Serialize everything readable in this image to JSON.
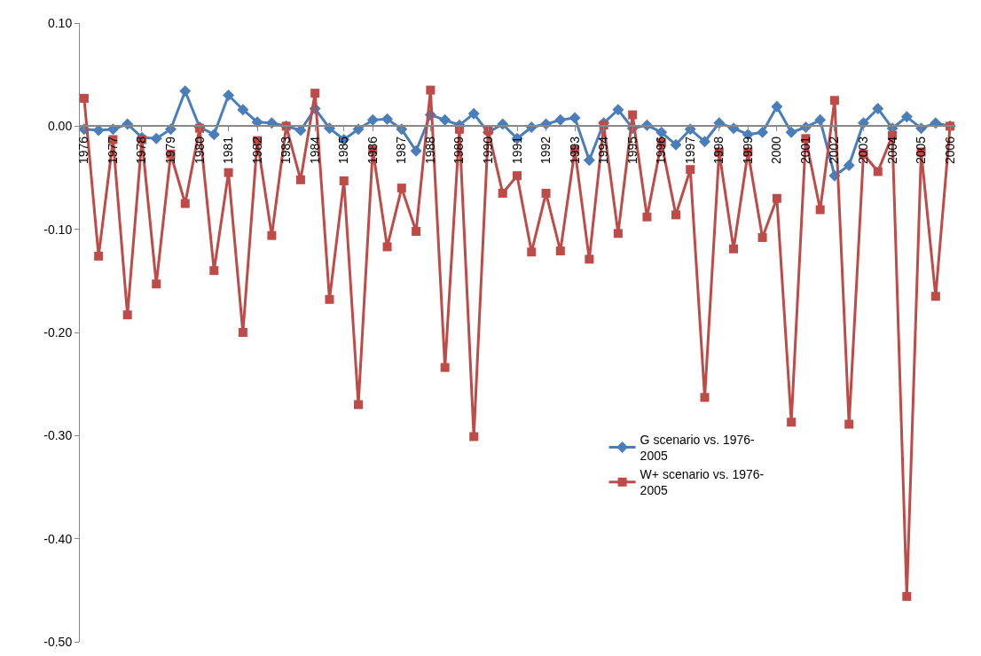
{
  "chart_data": {
    "type": "line",
    "categories": [
      "1976",
      null,
      "1977",
      null,
      "1978",
      null,
      "1979",
      null,
      "1980",
      null,
      "1981",
      null,
      "1982",
      null,
      "1983",
      null,
      "1984",
      null,
      "1985",
      null,
      "1986",
      null,
      "1987",
      null,
      "1988",
      null,
      "1989",
      null,
      "1990",
      null,
      "1991",
      null,
      "1992",
      null,
      "1993",
      null,
      "1994",
      null,
      "1995",
      null,
      "1996",
      null,
      "1997",
      null,
      "1998",
      null,
      "1999",
      null,
      "2000",
      null,
      "2001",
      null,
      "2002",
      null,
      "2003",
      null,
      "2004",
      null,
      "2005",
      null,
      "2006"
    ],
    "series": [
      {
        "name": "G scenario vs. 1976-2005",
        "color": "#4a7ebb",
        "marker": "diamond",
        "values": [
          -0.003,
          -0.004,
          -0.003,
          0.002,
          -0.011,
          -0.012,
          -0.003,
          0.034,
          -0.001,
          -0.008,
          0.03,
          0.016,
          0.004,
          0.003,
          0.0,
          -0.004,
          0.017,
          -0.002,
          -0.013,
          -0.003,
          0.006,
          0.007,
          -0.003,
          -0.024,
          0.011,
          0.006,
          0.001,
          0.012,
          -0.006,
          0.002,
          -0.012,
          -0.001,
          0.002,
          0.006,
          0.008,
          -0.033,
          0.003,
          0.016,
          -0.002,
          0.001,
          -0.006,
          -0.018,
          -0.003,
          -0.015,
          0.003,
          -0.002,
          -0.008,
          -0.006,
          0.019,
          -0.006,
          -0.001,
          0.006,
          -0.048,
          -0.038,
          0.003,
          0.017,
          -0.002,
          0.009,
          -0.002,
          0.003,
          0.0
        ]
      },
      {
        "name": "W+ scenario vs. 1976-2005",
        "color": "#be4b48",
        "marker": "square",
        "values": [
          0.027,
          -0.126,
          -0.013,
          -0.183,
          -0.013,
          -0.153,
          -0.027,
          -0.075,
          -0.002,
          -0.14,
          -0.045,
          -0.2,
          -0.014,
          -0.106,
          0.0,
          -0.052,
          0.032,
          -0.168,
          -0.053,
          -0.27,
          -0.023,
          -0.117,
          -0.06,
          -0.102,
          0.035,
          -0.234,
          -0.003,
          -0.301,
          -0.004,
          -0.065,
          -0.048,
          -0.122,
          -0.065,
          -0.121,
          -0.023,
          -0.129,
          0.001,
          -0.104,
          0.011,
          -0.088,
          -0.016,
          -0.086,
          -0.042,
          -0.263,
          -0.025,
          -0.119,
          -0.025,
          -0.108,
          -0.07,
          -0.287,
          -0.012,
          -0.081,
          0.025,
          -0.289,
          -0.027,
          -0.044,
          -0.009,
          -0.456,
          -0.025,
          -0.165,
          0.0
        ]
      }
    ],
    "ylim": [
      -0.5,
      0.1
    ],
    "yticks": [
      {
        "value": -0.5,
        "label": "-0.50"
      },
      {
        "value": -0.4,
        "label": "-0.40"
      },
      {
        "value": -0.3,
        "label": "-0.30"
      },
      {
        "value": -0.2,
        "label": "-0.20"
      },
      {
        "value": -0.1,
        "label": "-0.10"
      },
      {
        "value": 0,
        "label": "0.00"
      },
      {
        "value": 0.1,
        "label": "0.10"
      }
    ],
    "legend": "bottom right",
    "line_style": "solid"
  }
}
